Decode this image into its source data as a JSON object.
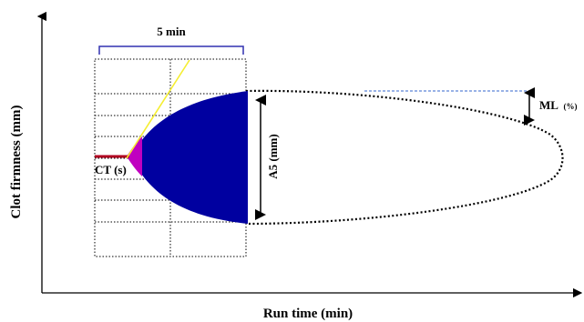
{
  "diagram": {
    "axes": {
      "xlabel": "Run time (min)",
      "ylabel": "Clot firmness (mm)"
    },
    "labels": {
      "bracket": "5 min",
      "ct": "CT (s)",
      "a5": "A5 (mm)",
      "ml_main": "ML",
      "ml_unit": "(%)"
    },
    "colors": {
      "clot_fill": "#0000A0",
      "ct_baseline": "#B00020",
      "initiation": "#C000C0",
      "angle_line": "#F5EE30",
      "bracket": "#3030B0",
      "ml_line": "#3366CC",
      "axis": "#000000"
    }
  }
}
